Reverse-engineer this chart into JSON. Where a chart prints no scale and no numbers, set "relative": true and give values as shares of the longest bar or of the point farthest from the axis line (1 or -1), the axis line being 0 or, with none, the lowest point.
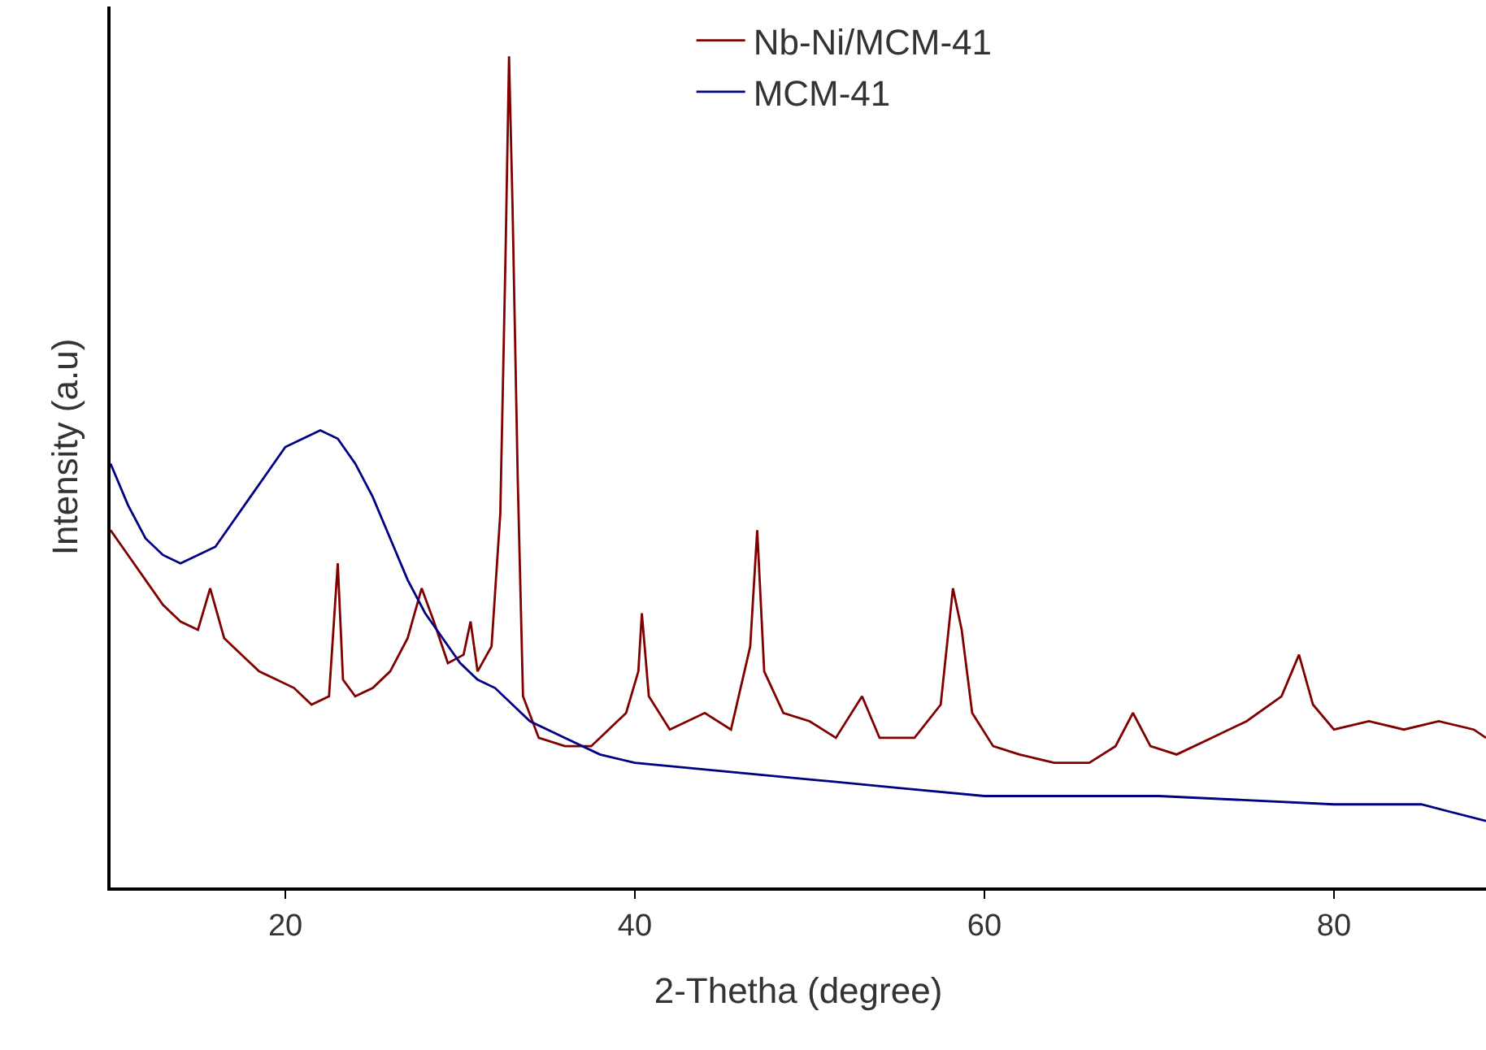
{
  "chart_data": {
    "type": "line",
    "xlabel": "2-Thetha (degree)",
    "ylabel": "Intensity (a.u)",
    "relative": true,
    "xlim": [
      10,
      88.7
    ],
    "xticks": [
      20,
      40,
      60,
      80
    ],
    "grid": false,
    "legend": "top",
    "marker": "none",
    "line_style": "solid",
    "series": [
      {
        "name": "Nb-Ni/MCM-41",
        "color": "#800000",
        "x": [
          10,
          11,
          12,
          13,
          14,
          15,
          15.7,
          16.5,
          17.5,
          18.5,
          19.5,
          20.5,
          21.5,
          22.5,
          23,
          23.3,
          24,
          25,
          26,
          27,
          27.8,
          28.5,
          29.3,
          30.2,
          30.6,
          31,
          31.8,
          32.3,
          32.6,
          32.8,
          33,
          33.3,
          33.6,
          34.5,
          36,
          37.5,
          38.5,
          39.5,
          40.2,
          40.4,
          40.8,
          42,
          44,
          45.5,
          46.6,
          47,
          47.4,
          48.5,
          50,
          51.5,
          53,
          54,
          56,
          57.5,
          58.2,
          58.7,
          59.3,
          60.5,
          62,
          64,
          66,
          67.5,
          68.5,
          69.5,
          71,
          73,
          75,
          77,
          78,
          78.8,
          80,
          82,
          84,
          86,
          88,
          88.7
        ],
        "values": [
          0.43,
          0.4,
          0.37,
          0.34,
          0.32,
          0.31,
          0.36,
          0.3,
          0.28,
          0.26,
          0.25,
          0.24,
          0.22,
          0.23,
          0.39,
          0.25,
          0.23,
          0.24,
          0.26,
          0.3,
          0.36,
          0.32,
          0.27,
          0.28,
          0.32,
          0.26,
          0.29,
          0.45,
          0.76,
          1.0,
          0.82,
          0.49,
          0.23,
          0.18,
          0.17,
          0.17,
          0.19,
          0.21,
          0.26,
          0.33,
          0.23,
          0.19,
          0.21,
          0.19,
          0.29,
          0.43,
          0.26,
          0.21,
          0.2,
          0.18,
          0.23,
          0.18,
          0.18,
          0.22,
          0.36,
          0.31,
          0.21,
          0.17,
          0.16,
          0.15,
          0.15,
          0.17,
          0.21,
          0.17,
          0.16,
          0.18,
          0.2,
          0.23,
          0.28,
          0.22,
          0.19,
          0.2,
          0.19,
          0.2,
          0.19,
          0.18
        ]
      },
      {
        "name": "MCM-41",
        "color": "#000080",
        "x": [
          10,
          11,
          12,
          13,
          14,
          15,
          16,
          17,
          18,
          19,
          20,
          21,
          22,
          23,
          24,
          25,
          26,
          27,
          28,
          29,
          30,
          31,
          32,
          34,
          36,
          38,
          40,
          45,
          50,
          55,
          60,
          70,
          80,
          85,
          88.7
        ],
        "values": [
          0.51,
          0.46,
          0.42,
          0.4,
          0.39,
          0.4,
          0.41,
          0.44,
          0.47,
          0.5,
          0.53,
          0.54,
          0.55,
          0.54,
          0.51,
          0.47,
          0.42,
          0.37,
          0.33,
          0.3,
          0.27,
          0.25,
          0.24,
          0.2,
          0.18,
          0.16,
          0.15,
          0.14,
          0.13,
          0.12,
          0.11,
          0.11,
          0.1,
          0.1,
          0.08
        ]
      }
    ]
  }
}
